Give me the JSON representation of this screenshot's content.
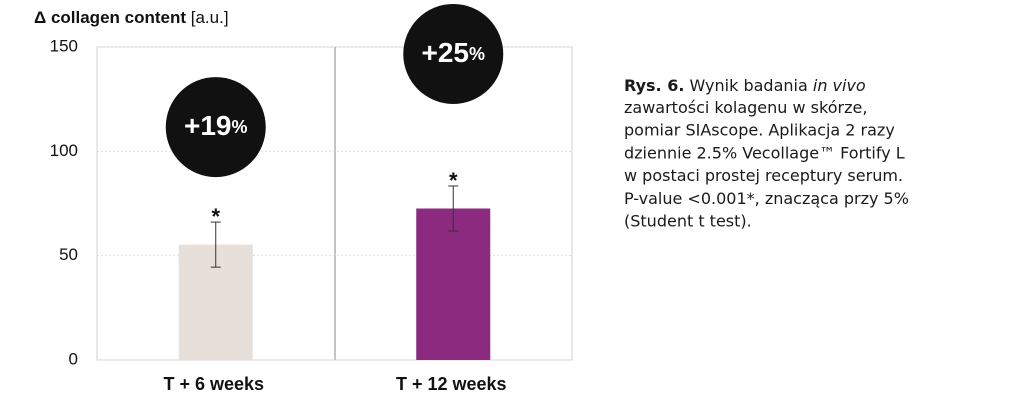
{
  "chart_data": {
    "type": "bar",
    "y_label": "Δ collagen content",
    "y_unit": "[a.u.]",
    "categories": [
      "T + 6 weeks",
      "T + 12 weeks"
    ],
    "values": [
      55.3,
      72.6
    ],
    "errors": [
      10.8,
      10.8
    ],
    "colors": [
      "#e6dfda",
      "#8b2a7f"
    ],
    "significance": [
      "*",
      "*"
    ],
    "annotations": [
      {
        "label": "+19",
        "suffix": "%"
      },
      {
        "label": "+25",
        "suffix": "%"
      }
    ],
    "ylim": [
      0,
      150
    ],
    "yticks": [
      0,
      50,
      100,
      150
    ],
    "grid": true
  },
  "caption": {
    "label": "Rys. 6.",
    "lead": "Wynik badania",
    "italic": "in vivo",
    "lines": [
      "zawartości kolagenu w skórze,",
      "pomiar SIAscope. Aplikacja 2 razy",
      "dziennie 2.5% Vecollage™ Fortify L",
      "w postaci prostej receptury serum.",
      "P-value <0.001*, znacząca przy 5%",
      "(Student t test)."
    ]
  }
}
